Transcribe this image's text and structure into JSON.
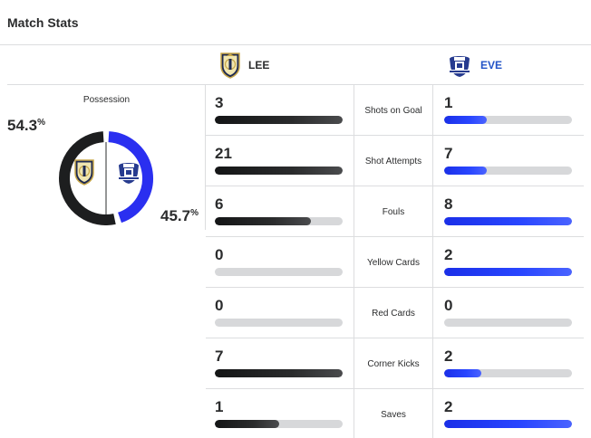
{
  "title": "Match Stats",
  "teams": {
    "lee": {
      "abbr": "LEE",
      "color": "#1d1e1f",
      "crest": "leeds-crest-icon"
    },
    "eve": {
      "abbr": "EVE",
      "color": "#2253c7",
      "crest": "everton-crest-icon"
    }
  },
  "possession": {
    "label": "Possession",
    "lee_value": "54.3",
    "eve_value": "45.7",
    "unit": "%",
    "lee_fraction": 0.543,
    "eve_fraction": 0.457,
    "lee_color": "#1d1e1f",
    "eve_color": "#2a2ff0"
  },
  "stats": [
    {
      "label": "Shots on Goal",
      "lee": "3",
      "eve": "1",
      "lee_fraction": 1.0,
      "eve_fraction": 0.33
    },
    {
      "label": "Shot Attempts",
      "lee": "21",
      "eve": "7",
      "lee_fraction": 1.0,
      "eve_fraction": 0.33
    },
    {
      "label": "Fouls",
      "lee": "6",
      "eve": "8",
      "lee_fraction": 0.75,
      "eve_fraction": 1.0
    },
    {
      "label": "Yellow Cards",
      "lee": "0",
      "eve": "2",
      "lee_fraction": 0.0,
      "eve_fraction": 1.0
    },
    {
      "label": "Red Cards",
      "lee": "0",
      "eve": "0",
      "lee_fraction": 0.0,
      "eve_fraction": 0.0
    },
    {
      "label": "Corner Kicks",
      "lee": "7",
      "eve": "2",
      "lee_fraction": 1.0,
      "eve_fraction": 0.29
    },
    {
      "label": "Saves",
      "lee": "1",
      "eve": "2",
      "lee_fraction": 0.5,
      "eve_fraction": 1.0
    }
  ]
}
